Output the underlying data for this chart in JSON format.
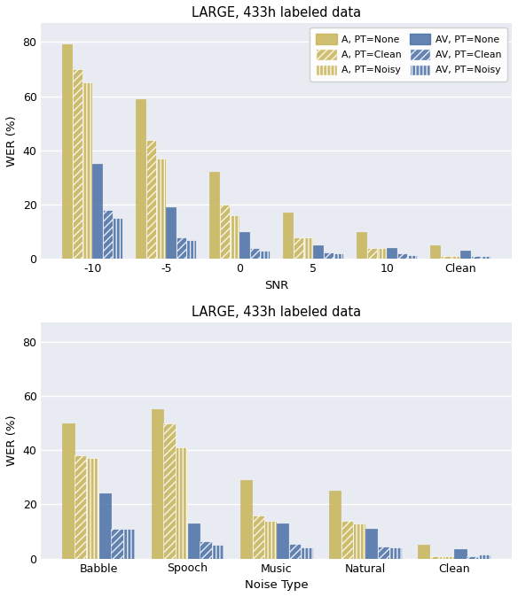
{
  "title": "LARGE, 433h labeled data",
  "top": {
    "categories": [
      "-10",
      "-5",
      "0",
      "5",
      "10",
      "Clean"
    ],
    "xlabel": "SNR",
    "ylabel": "WER (%)",
    "ylim": [
      0,
      87
    ],
    "yticks": [
      0,
      20,
      40,
      60,
      80
    ],
    "series": {
      "A_None": [
        79,
        59,
        32,
        17,
        10,
        5
      ],
      "A_Clean": [
        70,
        44,
        20,
        8,
        4,
        1
      ],
      "A_Noisy": [
        65,
        37,
        16,
        8,
        4,
        1
      ],
      "AV_None": [
        35,
        19,
        10,
        5,
        4,
        3
      ],
      "AV_Clean": [
        18,
        8,
        4,
        2.5,
        2,
        1
      ],
      "AV_Noisy": [
        15,
        7,
        3,
        2,
        1.5,
        1
      ]
    }
  },
  "bottom": {
    "categories": [
      "Babble",
      "Spooch",
      "Music",
      "Natural",
      "Clean"
    ],
    "xlabel": "Noise Type",
    "ylabel": "WER (%)",
    "ylim": [
      0,
      87
    ],
    "yticks": [
      0,
      20,
      40,
      60,
      80
    ],
    "series": {
      "A_None": [
        50,
        55,
        29,
        25,
        5
      ],
      "A_Clean": [
        38,
        50,
        16,
        14,
        1
      ],
      "A_Noisy": [
        37,
        41,
        14,
        13,
        1
      ],
      "AV_None": [
        24,
        13,
        13,
        11,
        3.5
      ],
      "AV_Clean": [
        11,
        6.5,
        5.5,
        4.5,
        1
      ],
      "AV_Noisy": [
        11,
        5,
        4,
        4,
        1.5
      ]
    }
  },
  "colors": {
    "gold": "#C8B457",
    "blue": "#4A6FA5"
  },
  "legend_entries": [
    {
      "label": "A, PT=None",
      "color": "gold",
      "hatch": null
    },
    {
      "label": "A, PT=Clean",
      "color": "gold",
      "hatch": "////"
    },
    {
      "label": "A, PT=Noisy",
      "color": "gold",
      "hatch": "||||"
    },
    {
      "label": "AV, PT=None",
      "color": "blue",
      "hatch": null
    },
    {
      "label": "AV, PT=Clean",
      "color": "blue",
      "hatch": "////"
    },
    {
      "label": "AV, PT=Noisy",
      "color": "blue",
      "hatch": "||||"
    }
  ],
  "bg_color": "#E8EBF2",
  "fig_bg": "#FFFFFF",
  "bar_alpha": 0.85,
  "group_width": 0.82,
  "bar_edge_color": "white"
}
